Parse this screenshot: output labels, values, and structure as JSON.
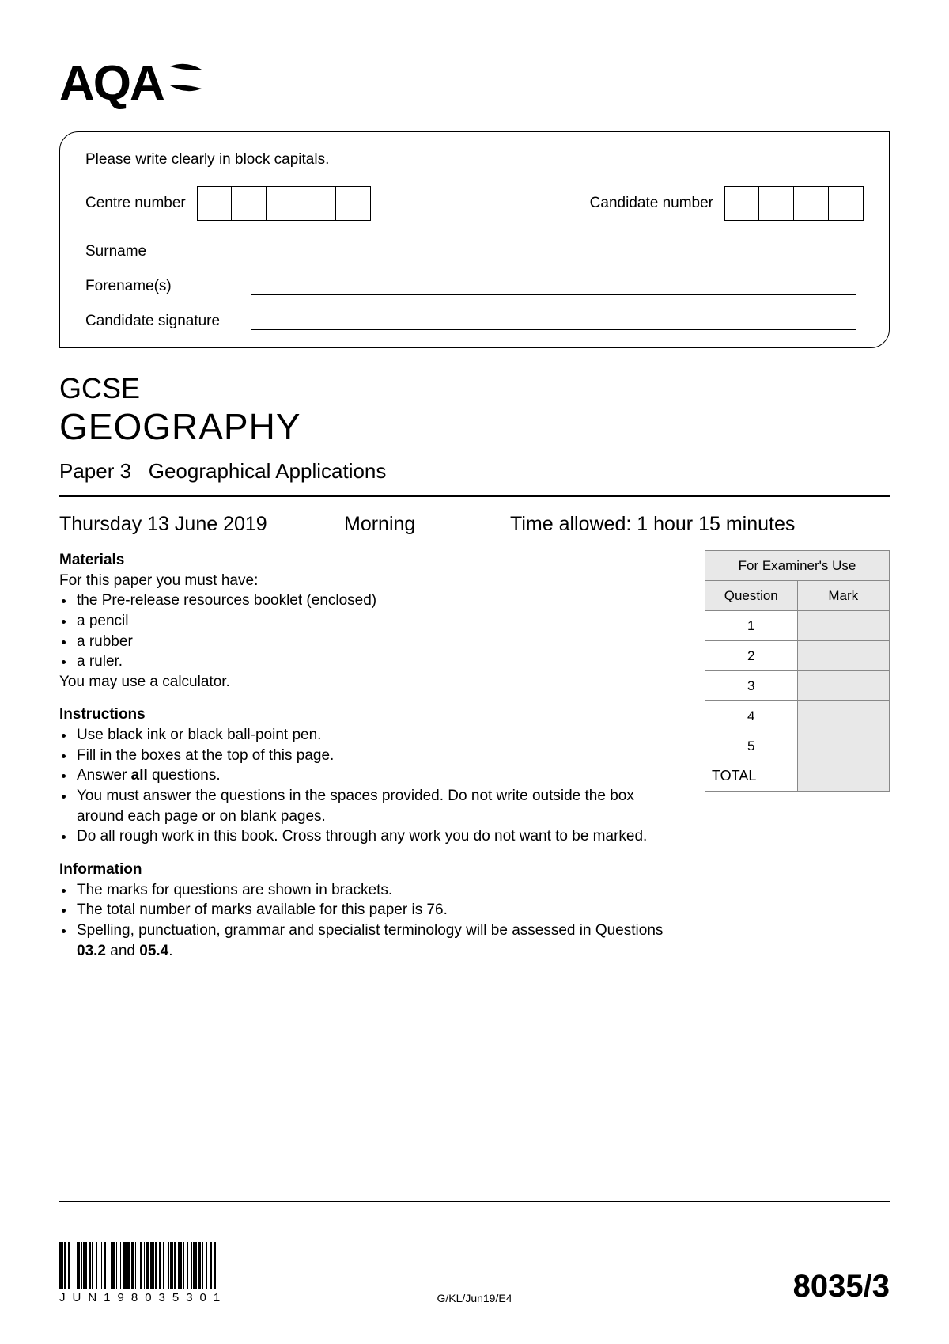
{
  "logo_text": "AQA",
  "candidate_box": {
    "instruction": "Please write clearly in block capitals.",
    "centre_label": "Centre number",
    "centre_box_count": 5,
    "candidate_label": "Candidate number",
    "candidate_box_count": 4,
    "surname_label": "Surname",
    "forenames_label": "Forename(s)",
    "signature_label": "Candidate signature"
  },
  "title": {
    "qualification": "GCSE",
    "subject": "GEOGRAPHY",
    "paper_prefix": "Paper 3",
    "paper_name": "Geographical Applications"
  },
  "session": {
    "date": "Thursday 13 June 2019",
    "time_of_day": "Morning",
    "time_allowed": "Time allowed: 1 hour 15 minutes"
  },
  "materials": {
    "heading": "Materials",
    "intro": "For this paper you must have:",
    "items": [
      "the Pre-release resources booklet (enclosed)",
      "a pencil",
      "a rubber",
      "a ruler."
    ],
    "calculator_note": "You may use a calculator."
  },
  "instructions": {
    "heading": "Instructions",
    "items": [
      "Use black ink or black ball-point pen.",
      "Fill in the boxes at the top of this page.",
      "Answer <b>all</b> questions.",
      "You must answer the questions in the spaces provided.  Do not write outside the box around each page or on blank pages.",
      "Do all rough work in this book.  Cross through any work you do not want to be marked."
    ]
  },
  "information": {
    "heading": "Information",
    "items": [
      "The marks for questions are shown in brackets.",
      "The total number of marks available for this paper is 76.",
      "Spelling, punctuation, grammar and specialist terminology will be assessed in Questions <b>03.2</b> and <b>05.4</b>."
    ]
  },
  "examiner_table": {
    "title": "For Examiner's Use",
    "col_question": "Question",
    "col_mark": "Mark",
    "rows": [
      "1",
      "2",
      "3",
      "4",
      "5"
    ],
    "total_label": "TOTAL"
  },
  "footer": {
    "barcode_text": "JUN198035301",
    "ref": "G/KL/Jun19/E4",
    "paper_code": "8035/3"
  },
  "colors": {
    "text": "#000000",
    "background": "#ffffff",
    "table_border": "#888888",
    "table_shade": "#e8e8e8"
  }
}
